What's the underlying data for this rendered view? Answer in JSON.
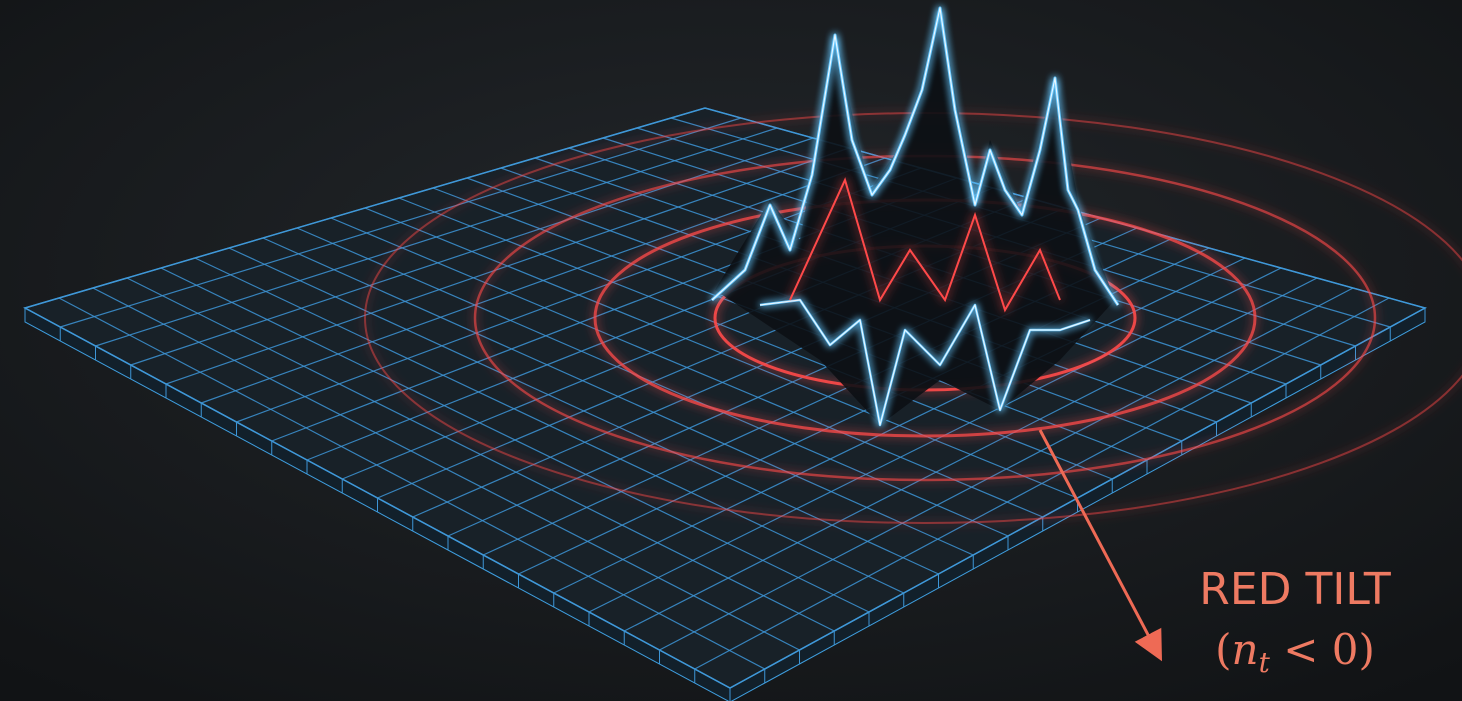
{
  "annotation": {
    "title": "RED TILT",
    "formula": {
      "open": "(",
      "symbol": "n",
      "subscript": "t",
      "relation": " < 0",
      "close": ")"
    }
  }
}
